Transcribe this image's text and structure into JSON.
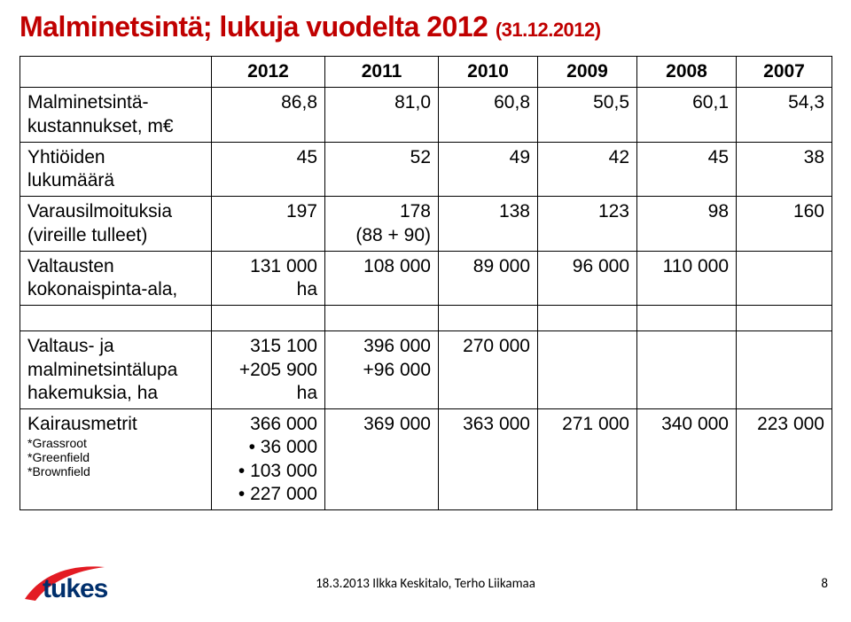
{
  "title_main": "Malminetsintä; lukuja vuodelta 2012 ",
  "title_sub": "(31.12.2012)",
  "columns": [
    "2012",
    "2011",
    "2010",
    "2009",
    "2008",
    "2007"
  ],
  "rows_top": [
    {
      "label": "Malminetsintä-\nkustannukset, m€",
      "cells": [
        "86,8",
        "81,0",
        "60,8",
        "50,5",
        "60,1",
        "54,3"
      ]
    },
    {
      "label": "Yhtiöiden\nlukumäärä",
      "cells": [
        "45",
        "52",
        "49",
        "42",
        "45",
        "38"
      ]
    },
    {
      "label": "Varausilmoituksia\n(vireille tulleet)",
      "cells": [
        "197",
        "178\n(88 + 90)",
        "138",
        "123",
        "98",
        "160"
      ]
    },
    {
      "label": "Valtausten\nkokonaispinta-ala,",
      "cells": [
        "131 000\nha",
        "108 000",
        "89 000",
        "96 000",
        "110 000",
        ""
      ]
    }
  ],
  "rows_bottom": [
    {
      "label": "Valtaus- ja\nmalminetsintälupa\nhakemuksia, ha",
      "cells": [
        "315 100\n+205 900\nha",
        "396 000\n+96 000",
        "270 000",
        "",
        "",
        ""
      ]
    },
    {
      "label_main": "Kairausmetrit",
      "label_subs": [
        "*Grassroot",
        "*Greenfield",
        "*Brownfield"
      ],
      "cell0_main": "366 000",
      "cell0_bullets": [
        "36 000",
        "103 000",
        "227 000"
      ],
      "cells_rest": [
        "369 000",
        "363 000",
        "271 000",
        "340 000",
        "223 000"
      ]
    }
  ],
  "footer_text": "18.3.2013 Ilkka Keskitalo, Terho Liikamaa",
  "page_number": "8",
  "logo_text": "tukes",
  "colors": {
    "title": "#c00000",
    "logo_red": "#e31b23",
    "logo_navy": "#002f6c",
    "border": "#000000",
    "background": "#ffffff"
  }
}
